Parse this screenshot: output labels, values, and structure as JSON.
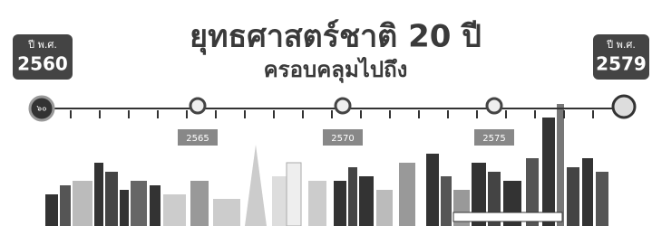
{
  "header": {
    "title": "ยุทธศาสตร์ชาติ 20 ปี",
    "subtitle": "ครอบคลุมไปถึง"
  },
  "timeline": {
    "start": {
      "caption": "ปี พ.ศ.",
      "year": "2560",
      "badge": "๖๐"
    },
    "end": {
      "caption": "ปี พ.ศ.",
      "year": "2579"
    },
    "milestones": [
      "2565",
      "2570",
      "2575"
    ]
  }
}
